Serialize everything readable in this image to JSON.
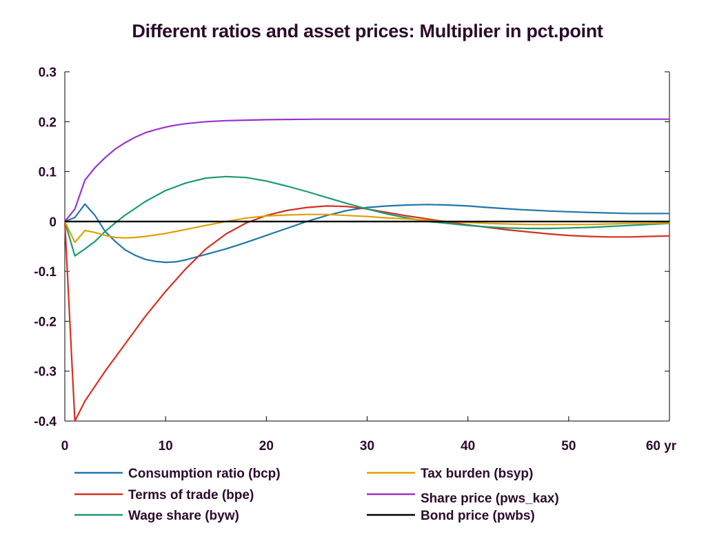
{
  "chart_data": {
    "type": "line",
    "title": "Different ratios and asset prices: Multiplier in pct.point",
    "xlabel": "",
    "ylabel": "",
    "x_unit": "yr",
    "xlim": [
      0,
      60
    ],
    "ylim": [
      -0.4,
      0.3
    ],
    "x_ticks": [
      0,
      10,
      20,
      30,
      40,
      50,
      60
    ],
    "x_tick_labels": [
      "0",
      "10",
      "20",
      "30",
      "40",
      "50",
      "60 yr"
    ],
    "y_ticks": [
      0.3,
      0.2,
      0.1,
      0,
      -0.1,
      -0.2,
      -0.3,
      -0.4
    ],
    "y_tick_labels": [
      "0.3",
      "0.2",
      "0.1",
      "0",
      "-0.1",
      "-0.2",
      "-0.3",
      "-0.4"
    ],
    "grid": false,
    "legend_position": "bottom",
    "series": [
      {
        "name": "Consumption ratio (bcp)",
        "color": "#1f77a8",
        "points": [
          [
            0,
            0
          ],
          [
            1,
            0.008
          ],
          [
            2,
            0.035
          ],
          [
            3,
            0.012
          ],
          [
            4,
            -0.02
          ],
          [
            5,
            -0.04
          ],
          [
            6,
            -0.057
          ],
          [
            7,
            -0.068
          ],
          [
            8,
            -0.076
          ],
          [
            9,
            -0.08
          ],
          [
            10,
            -0.082
          ],
          [
            11,
            -0.081
          ],
          [
            12,
            -0.077
          ],
          [
            14,
            -0.066
          ],
          [
            16,
            -0.055
          ],
          [
            18,
            -0.042
          ],
          [
            20,
            -0.028
          ],
          [
            22,
            -0.014
          ],
          [
            24,
            0.0
          ],
          [
            26,
            0.012
          ],
          [
            28,
            0.022
          ],
          [
            30,
            0.028
          ],
          [
            32,
            0.031
          ],
          [
            34,
            0.033
          ],
          [
            36,
            0.034
          ],
          [
            38,
            0.033
          ],
          [
            40,
            0.031
          ],
          [
            42,
            0.028
          ],
          [
            45,
            0.024
          ],
          [
            48,
            0.021
          ],
          [
            52,
            0.018
          ],
          [
            56,
            0.016
          ],
          [
            60,
            0.016
          ]
        ]
      },
      {
        "name": "Terms of trade (bpe)",
        "color": "#d62f1f",
        "points": [
          [
            0,
            0
          ],
          [
            1,
            -0.4
          ],
          [
            2,
            -0.36
          ],
          [
            4,
            -0.3
          ],
          [
            6,
            -0.245
          ],
          [
            8,
            -0.19
          ],
          [
            10,
            -0.14
          ],
          [
            12,
            -0.095
          ],
          [
            14,
            -0.055
          ],
          [
            16,
            -0.025
          ],
          [
            18,
            -0.003
          ],
          [
            20,
            0.012
          ],
          [
            22,
            0.022
          ],
          [
            24,
            0.028
          ],
          [
            26,
            0.031
          ],
          [
            28,
            0.03
          ],
          [
            30,
            0.025
          ],
          [
            32,
            0.018
          ],
          [
            34,
            0.011
          ],
          [
            36,
            0.005
          ],
          [
            38,
            -0.001
          ],
          [
            40,
            -0.007
          ],
          [
            42,
            -0.012
          ],
          [
            44,
            -0.017
          ],
          [
            46,
            -0.021
          ],
          [
            48,
            -0.025
          ],
          [
            50,
            -0.028
          ],
          [
            52,
            -0.03
          ],
          [
            54,
            -0.031
          ],
          [
            56,
            -0.031
          ],
          [
            58,
            -0.03
          ],
          [
            60,
            -0.029
          ]
        ]
      },
      {
        "name": "Wage share (byw)",
        "color": "#1a9b77",
        "points": [
          [
            0,
            0
          ],
          [
            1,
            -0.069
          ],
          [
            2,
            -0.055
          ],
          [
            3,
            -0.04
          ],
          [
            4,
            -0.02
          ],
          [
            5,
            -0.003
          ],
          [
            6,
            0.013
          ],
          [
            8,
            0.04
          ],
          [
            10,
            0.062
          ],
          [
            12,
            0.077
          ],
          [
            14,
            0.087
          ],
          [
            16,
            0.09
          ],
          [
            18,
            0.088
          ],
          [
            20,
            0.081
          ],
          [
            22,
            0.071
          ],
          [
            24,
            0.06
          ],
          [
            26,
            0.048
          ],
          [
            28,
            0.036
          ],
          [
            30,
            0.025
          ],
          [
            32,
            0.015
          ],
          [
            34,
            0.007
          ],
          [
            36,
            0.0
          ],
          [
            38,
            -0.004
          ],
          [
            40,
            -0.008
          ],
          [
            42,
            -0.011
          ],
          [
            44,
            -0.013
          ],
          [
            46,
            -0.014
          ],
          [
            48,
            -0.014
          ],
          [
            50,
            -0.013
          ],
          [
            52,
            -0.012
          ],
          [
            54,
            -0.01
          ],
          [
            56,
            -0.008
          ],
          [
            58,
            -0.006
          ],
          [
            60,
            -0.004
          ]
        ]
      },
      {
        "name": "Tax burden (bsyp)",
        "color": "#e0a000",
        "points": [
          [
            0,
            0
          ],
          [
            1,
            -0.042
          ],
          [
            2,
            -0.018
          ],
          [
            3,
            -0.022
          ],
          [
            4,
            -0.028
          ],
          [
            5,
            -0.032
          ],
          [
            6,
            -0.033
          ],
          [
            7,
            -0.032
          ],
          [
            8,
            -0.03
          ],
          [
            10,
            -0.024
          ],
          [
            12,
            -0.016
          ],
          [
            14,
            -0.008
          ],
          [
            16,
            0.0
          ],
          [
            18,
            0.007
          ],
          [
            20,
            0.011
          ],
          [
            22,
            0.013
          ],
          [
            24,
            0.014
          ],
          [
            26,
            0.014
          ],
          [
            28,
            0.012
          ],
          [
            30,
            0.01
          ],
          [
            32,
            0.007
          ],
          [
            34,
            0.005
          ],
          [
            36,
            0.002
          ],
          [
            38,
            0.0
          ],
          [
            40,
            -0.002
          ],
          [
            42,
            -0.004
          ],
          [
            44,
            -0.005
          ],
          [
            46,
            -0.006
          ],
          [
            48,
            -0.006
          ],
          [
            50,
            -0.006
          ],
          [
            52,
            -0.006
          ],
          [
            54,
            -0.005
          ],
          [
            56,
            -0.004
          ],
          [
            58,
            -0.004
          ],
          [
            60,
            -0.003
          ]
        ]
      },
      {
        "name": "Share price (pws_kax)",
        "color": "#9933cc",
        "points": [
          [
            0,
            0
          ],
          [
            1,
            0.025
          ],
          [
            2,
            0.083
          ],
          [
            3,
            0.108
          ],
          [
            4,
            0.128
          ],
          [
            5,
            0.145
          ],
          [
            6,
            0.158
          ],
          [
            7,
            0.169
          ],
          [
            8,
            0.178
          ],
          [
            9,
            0.184
          ],
          [
            10,
            0.189
          ],
          [
            11,
            0.193
          ],
          [
            12,
            0.196
          ],
          [
            14,
            0.2
          ],
          [
            16,
            0.202
          ],
          [
            18,
            0.203
          ],
          [
            20,
            0.204
          ],
          [
            25,
            0.205
          ],
          [
            30,
            0.205
          ],
          [
            40,
            0.205
          ],
          [
            50,
            0.205
          ],
          [
            60,
            0.205
          ]
        ]
      },
      {
        "name": "Bond price (pwbs)",
        "color": "#000000",
        "points": [
          [
            0,
            0
          ],
          [
            60,
            0
          ]
        ]
      }
    ]
  }
}
